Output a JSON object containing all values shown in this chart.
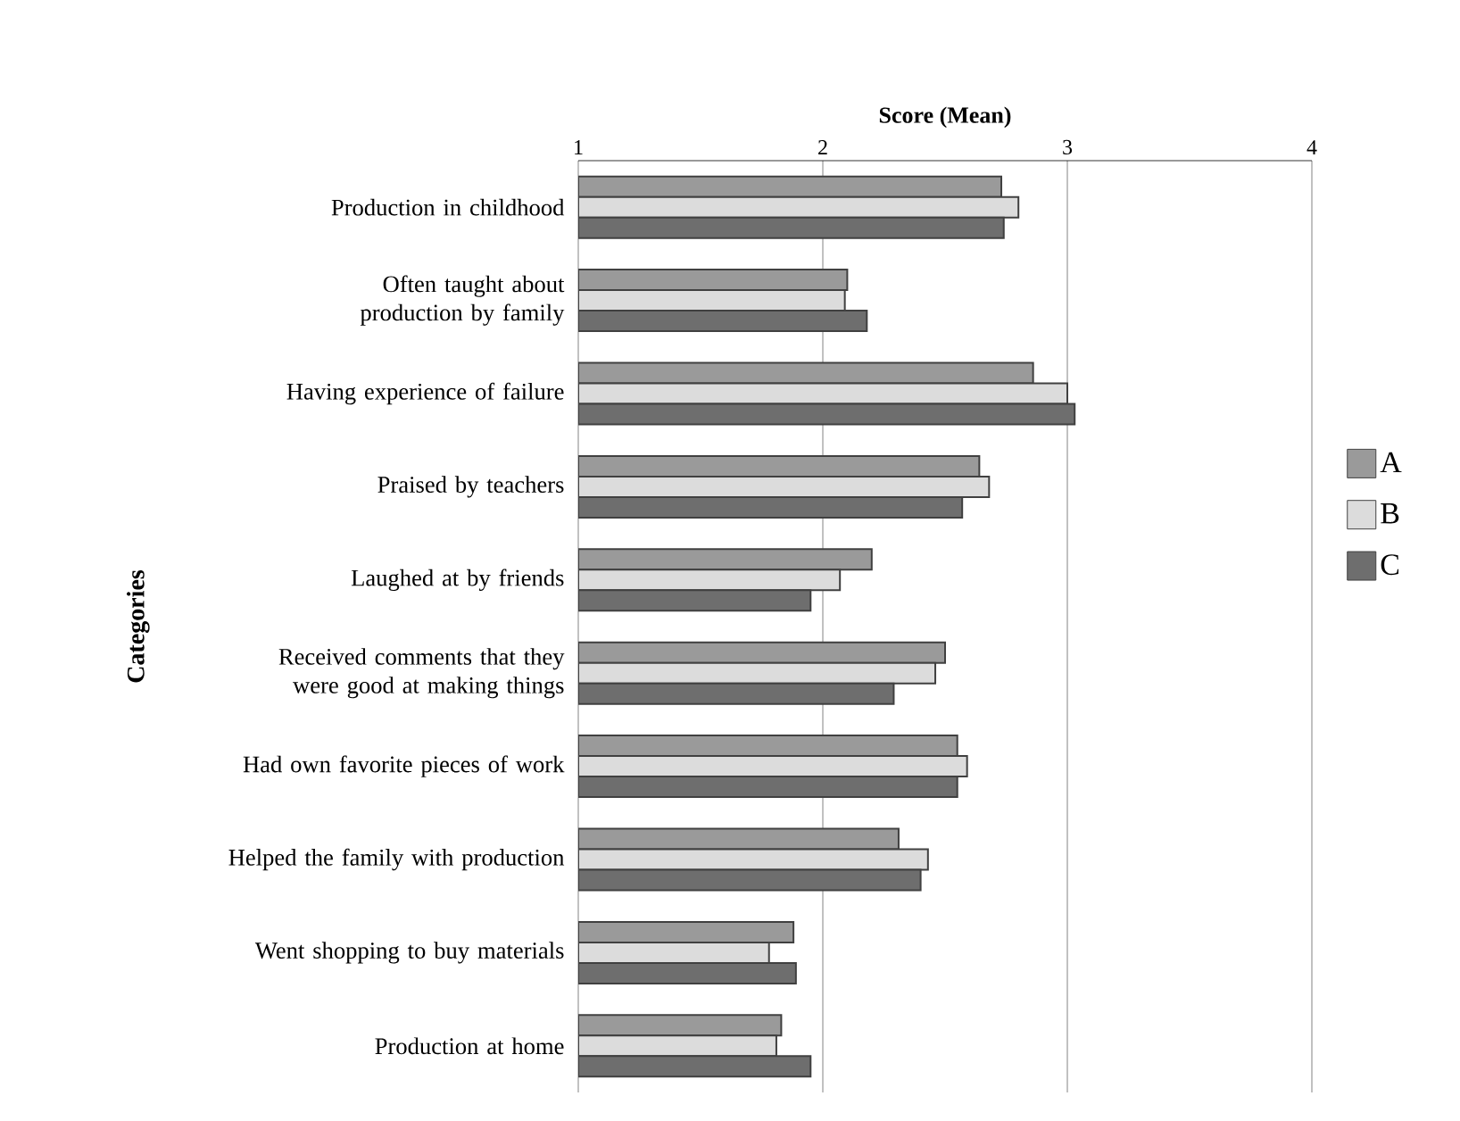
{
  "chart_data": {
    "type": "bar",
    "orientation": "horizontal",
    "xlabel": "Score (Mean)",
    "ylabel": "Categories",
    "categories": [
      "Production in childhood",
      "Often taught about production by family",
      "Having experience of failure",
      "Praised by teachers",
      "Laughed at by friends",
      "Received comments that they were good at making things",
      "Had own favorite pieces of work",
      "Helped the family with production",
      "Went shopping to buy materials",
      "Production at home"
    ],
    "series": [
      {
        "name": "A",
        "color": "#9a9a9a",
        "values": [
          2.73,
          2.1,
          2.86,
          2.64,
          2.2,
          2.5,
          2.55,
          2.31,
          1.88,
          1.83
        ]
      },
      {
        "name": "B",
        "color": "#dcdcdc",
        "values": [
          2.8,
          2.09,
          3.0,
          2.68,
          2.07,
          2.46,
          2.59,
          2.43,
          1.78,
          1.81
        ]
      },
      {
        "name": "C",
        "color": "#6e6e6e",
        "values": [
          2.74,
          2.18,
          3.03,
          2.57,
          1.95,
          2.29,
          2.55,
          2.4,
          1.89,
          1.95
        ]
      }
    ],
    "xlim": [
      1,
      4
    ],
    "xticks": [
      1,
      2,
      3,
      4
    ],
    "grid": "x",
    "legend": "right"
  }
}
